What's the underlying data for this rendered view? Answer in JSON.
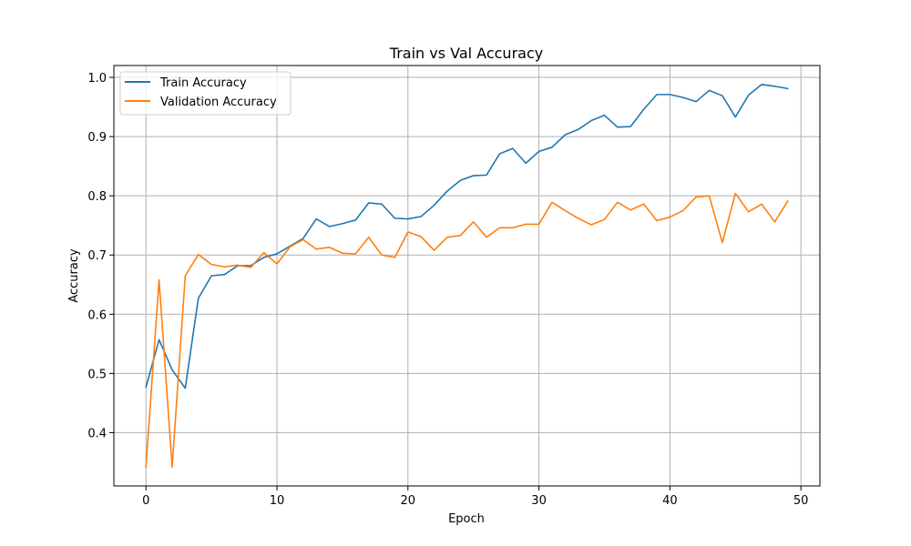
{
  "chart_data": {
    "type": "line",
    "title": "Train vs Val Accuracy",
    "xlabel": "Epoch",
    "ylabel": "Accuracy",
    "xlim": [
      -2.45,
      51.45
    ],
    "ylim": [
      0.31,
      1.02
    ],
    "xticks": [
      0,
      10,
      20,
      30,
      40,
      50
    ],
    "yticks": [
      0.4,
      0.5,
      0.6,
      0.7,
      0.8,
      0.9,
      1.0
    ],
    "xtick_labels": [
      "0",
      "10",
      "20",
      "30",
      "40",
      "50"
    ],
    "ytick_labels": [
      "0.4",
      "0.5",
      "0.6",
      "0.7",
      "0.8",
      "0.9",
      "1.0"
    ],
    "grid": true,
    "legend_position": "top-left",
    "x": [
      0,
      1,
      2,
      3,
      4,
      5,
      6,
      7,
      8,
      9,
      10,
      11,
      12,
      13,
      14,
      15,
      16,
      17,
      18,
      19,
      20,
      21,
      22,
      23,
      24,
      25,
      26,
      27,
      28,
      29,
      30,
      31,
      32,
      33,
      34,
      35,
      36,
      37,
      38,
      39,
      40,
      41,
      42,
      43,
      44,
      45,
      46,
      47,
      48,
      49
    ],
    "series": [
      {
        "name": "Train Accuracy",
        "color": "#1f77b4",
        "values": [
          0.477,
          0.557,
          0.506,
          0.475,
          0.627,
          0.665,
          0.667,
          0.682,
          0.682,
          0.696,
          0.702,
          0.715,
          0.728,
          0.761,
          0.748,
          0.753,
          0.759,
          0.788,
          0.786,
          0.762,
          0.761,
          0.765,
          0.784,
          0.808,
          0.826,
          0.834,
          0.835,
          0.871,
          0.88,
          0.855,
          0.875,
          0.882,
          0.903,
          0.912,
          0.927,
          0.936,
          0.916,
          0.917,
          0.946,
          0.971,
          0.971,
          0.966,
          0.959,
          0.978,
          0.969,
          0.933,
          0.97,
          0.988,
          0.985,
          0.981
        ]
      },
      {
        "name": "Validation Accuracy",
        "color": "#ff7f0e",
        "values": [
          0.342,
          0.658,
          0.342,
          0.665,
          0.701,
          0.684,
          0.68,
          0.683,
          0.679,
          0.704,
          0.685,
          0.714,
          0.726,
          0.71,
          0.713,
          0.703,
          0.702,
          0.73,
          0.7,
          0.696,
          0.739,
          0.731,
          0.708,
          0.73,
          0.733,
          0.756,
          0.73,
          0.746,
          0.746,
          0.752,
          0.752,
          0.789,
          0.775,
          0.762,
          0.751,
          0.76,
          0.789,
          0.776,
          0.786,
          0.758,
          0.764,
          0.775,
          0.798,
          0.8,
          0.721,
          0.804,
          0.773,
          0.786,
          0.756,
          0.791
        ]
      }
    ]
  }
}
